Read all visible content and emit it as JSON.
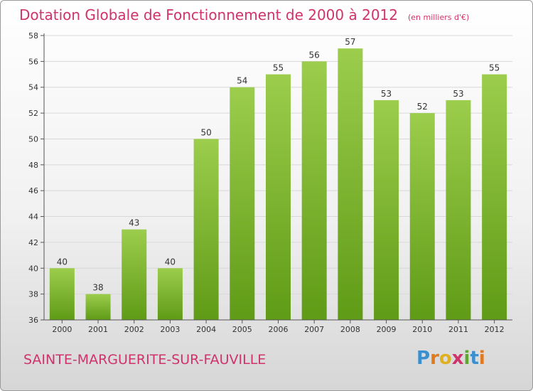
{
  "header": {
    "title": "Dotation Globale de Fonctionnement de 2000 à 2012",
    "unit": "(en milliers d'€)"
  },
  "footer": {
    "commune": "SAINTE-MARGUERITE-SUR-FAUVILLE",
    "logo": "Proxiti"
  },
  "colors": {
    "title": "#d0326b",
    "bar_top": "#9ccd4c",
    "bar_bottom": "#5f9b16",
    "axis": "#555555",
    "grid": "#d8d8d8"
  },
  "chart_data": {
    "type": "bar",
    "title": "Dotation Globale de Fonctionnement de 2000 à 2012",
    "subtitle": "(en milliers d'€)",
    "xlabel": "",
    "ylabel": "",
    "categories": [
      "2000",
      "2001",
      "2002",
      "2003",
      "2004",
      "2005",
      "2006",
      "2007",
      "2008",
      "2009",
      "2010",
      "2011",
      "2012"
    ],
    "values": [
      40,
      38,
      43,
      40,
      50,
      54,
      55,
      56,
      57,
      53,
      52,
      53,
      55
    ],
    "ylim": [
      36,
      58
    ],
    "yticks": [
      36,
      38,
      40,
      42,
      44,
      46,
      48,
      50,
      52,
      54,
      56,
      58
    ],
    "grid": true,
    "legend": "none",
    "data_labels": true
  }
}
